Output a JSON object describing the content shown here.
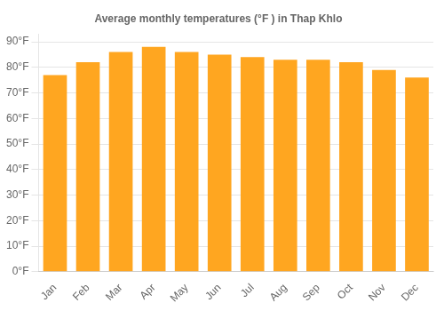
{
  "chart_data": {
    "type": "bar",
    "title": "Average monthly temperatures (°F ) in Thap Khlo",
    "categories": [
      "Jan",
      "Feb",
      "Mar",
      "Apr",
      "May",
      "Jun",
      "Jul",
      "Aug",
      "Sep",
      "Oct",
      "Nov",
      "Dec"
    ],
    "values": [
      77,
      82,
      86,
      88,
      86,
      85,
      84,
      83,
      83,
      82,
      79,
      76
    ],
    "color": "#FFA620",
    "ylim": [
      0,
      93
    ],
    "yticks": [
      {
        "value": 0,
        "label": "0°F"
      },
      {
        "value": 10,
        "label": "10°F"
      },
      {
        "value": 20,
        "label": "20°F"
      },
      {
        "value": 30,
        "label": "30°F"
      },
      {
        "value": 40,
        "label": "40°F"
      },
      {
        "value": 50,
        "label": "50°F"
      },
      {
        "value": 60,
        "label": "60°F"
      },
      {
        "value": 70,
        "label": "70°F"
      },
      {
        "value": 80,
        "label": "80°F"
      },
      {
        "value": 90,
        "label": "90°F"
      }
    ],
    "grid": true
  }
}
